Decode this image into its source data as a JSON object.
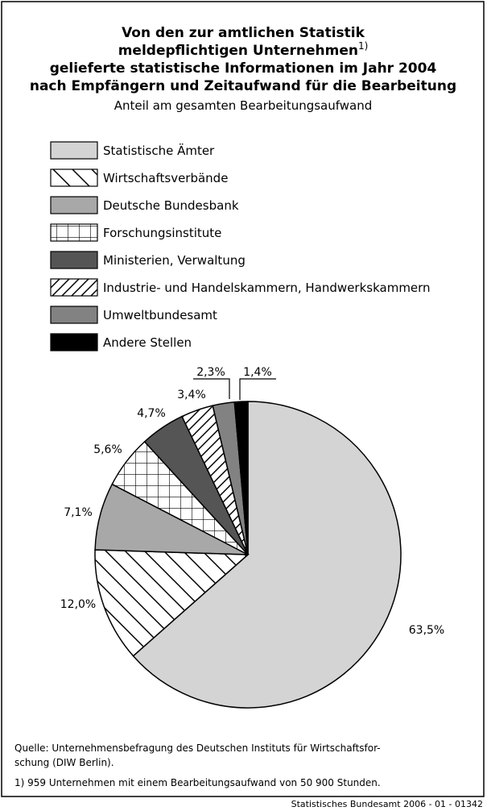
{
  "chart_data": {
    "type": "pie",
    "title": [
      "Von den zur amtlichen Statistik",
      "meldepflichtigen Unternehmen",
      "gelieferte statistische Informationen im Jahr 2004",
      "nach Empfängern und Zeitaufwand für die Bearbeitung"
    ],
    "title_footnote_mark": "1)",
    "subtitle": "Anteil am gesamten Bearbeitungsaufwand",
    "categories": [
      "Statistische Ämter",
      "Wirtschaftsverbände",
      "Deutsche Bundesbank",
      "Forschungsinstitute",
      "Ministerien, Verwaltung",
      "Industrie- und Handelskammern, Handwerkskammern",
      "Umweltbundesamt",
      "Andere Stellen"
    ],
    "values": [
      63.5,
      12.0,
      7.1,
      5.6,
      4.7,
      3.4,
      2.3,
      1.4
    ],
    "value_labels": [
      "63,5%",
      "12,0%",
      "7,1%",
      "5,6%",
      "4,7%",
      "3,4%",
      "2,3%",
      "1,4%"
    ],
    "colors": [
      "#d4d4d4",
      "#ffffff",
      "#a8a8a8",
      "#ffffff",
      "#555555",
      "#ffffff",
      "#828282",
      "#000000"
    ],
    "patterns": [
      "solid",
      "backslash",
      "solid",
      "grid",
      "solid",
      "slash",
      "solid",
      "solid"
    ],
    "source": [
      "Quelle: Unternehmensbefragung des Deutschen Instituts für Wirtschaftsfor-",
      "schung (DIW Berlin)."
    ],
    "footnote": "1) 959 Unternehmen mit einem Bearbeitungsaufwand von 50 900 Stunden.",
    "credit": "Statistisches Bundesamt 2006 - 01 - 01342"
  }
}
